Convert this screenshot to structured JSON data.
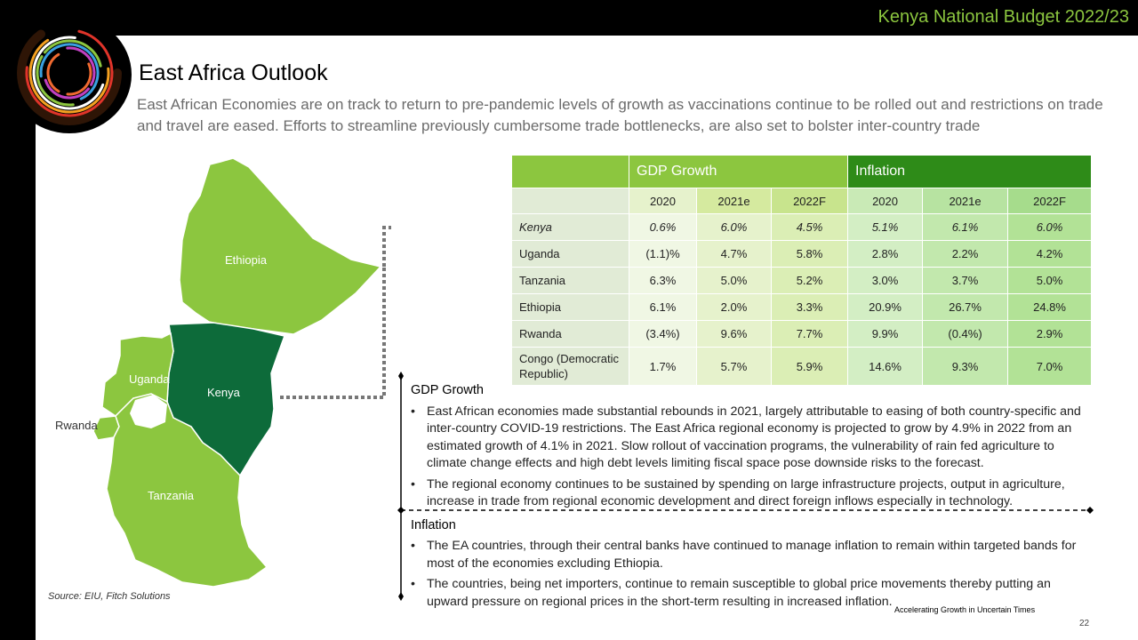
{
  "header": {
    "title": "Kenya National Budget 2022/23"
  },
  "page": {
    "title": "East Africa Outlook",
    "intro": "East African Economies are on track to return to pre-pandemic levels of growth as vaccinations continue to be rolled out and restrictions on trade and travel are eased. Efforts to streamline previously cumbersome trade bottlenecks, are also set to bolster inter-country trade"
  },
  "map": {
    "labels": {
      "ethiopia": "Ethiopia",
      "uganda": "Uganda",
      "kenya": "Kenya",
      "rwanda": "Rwanda",
      "tanzania": "Tanzania"
    },
    "colors": {
      "light": "#8cc63f",
      "kenya": "#0d6b3a"
    },
    "source": "Source: EIU, Fitch Solutions"
  },
  "table": {
    "groups": {
      "gdp": "GDP Growth",
      "inflation": "Inflation"
    },
    "years": [
      "2020",
      "2021e",
      "2022F",
      "2020",
      "2021e",
      "2022F"
    ],
    "rows": [
      {
        "country": "Kenya",
        "values": [
          "0.6%",
          "6.0%",
          "4.5%",
          "5.1%",
          "6.1%",
          "6.0%"
        ]
      },
      {
        "country": "Uganda",
        "values": [
          "(1.1)%",
          "4.7%",
          "5.8%",
          "2.8%",
          "2.2%",
          "4.2%"
        ]
      },
      {
        "country": "Tanzania",
        "values": [
          "6.3%",
          "5.0%",
          "5.2%",
          "3.0%",
          "3.7%",
          "5.0%"
        ]
      },
      {
        "country": "Ethiopia",
        "values": [
          "6.1%",
          "2.0%",
          "3.3%",
          "20.9%",
          "26.7%",
          "24.8%"
        ]
      },
      {
        "country": "Rwanda",
        "values": [
          "(3.4%)",
          "9.6%",
          "7.7%",
          "9.9%",
          "(0.4%)",
          "2.9%"
        ]
      },
      {
        "country": "Congo (Democratic Republic)",
        "values": [
          "1.7%",
          "5.7%",
          "5.9%",
          "14.6%",
          "9.3%",
          "7.0%"
        ]
      }
    ]
  },
  "commentary": {
    "gdp_heading": "GDP Growth",
    "gdp_bullets": [
      "East African economies made substantial rebounds in 2021, largely attributable to easing of both country-specific and inter-country COVID-19 restrictions. The East Africa regional economy is projected to grow by 4.9% in 2022 from an estimated growth of 4.1% in 2021. Slow rollout of vaccination programs, the vulnerability of rain fed agriculture to climate change effects and high debt levels limiting fiscal space pose downside risks  to the forecast.",
      "The regional economy continues to be sustained by spending on large infrastructure projects, output in agriculture, increase in trade from regional economic development and direct foreign inflows especially in technology."
    ],
    "inflation_heading": "Inflation",
    "inflation_bullets": [
      "The EA countries, through their central banks have continued to manage  inflation to remain within targeted bands for most of the economies excluding Ethiopia.",
      "The countries, being net importers, continue to remain susceptible to global price movements thereby putting an upward pressure on regional prices in the short-term resulting in increased inflation."
    ]
  },
  "footer": {
    "tagline": "Accelerating Growth in Uncertain Times",
    "page_number": "22"
  }
}
